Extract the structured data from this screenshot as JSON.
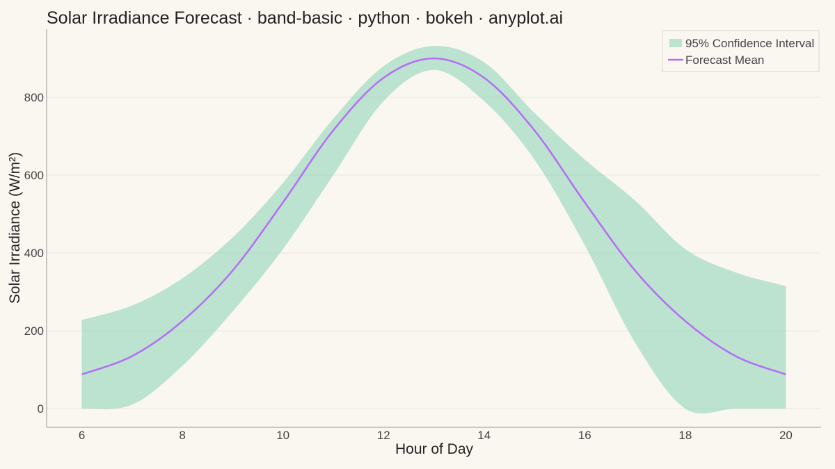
{
  "chart_data": {
    "type": "area",
    "title": "Solar Irradiance Forecast · band-basic · python · bokeh · anyplot.ai",
    "xlabel": "Hour of Day",
    "ylabel": "Solar Irradiance (W/m²)",
    "xlim": [
      5.3,
      20.7
    ],
    "ylim": [
      -48,
      975
    ],
    "x_ticks": [
      6,
      8,
      10,
      12,
      14,
      16,
      18,
      20
    ],
    "y_ticks": [
      0,
      200,
      400,
      600,
      800
    ],
    "grid": "horizontal",
    "legend_position": "top-right",
    "x": [
      6,
      7,
      8,
      9,
      10,
      11,
      12,
      13,
      14,
      15,
      16,
      17,
      18,
      19,
      20
    ],
    "series": [
      {
        "name": "95% Confidence Interval",
        "kind": "band",
        "color": "#7ecfad",
        "lower": [
          0,
          10,
          110,
          250,
          410,
          600,
          790,
          870,
          790,
          640,
          420,
          170,
          0,
          0,
          0
        ],
        "upper": [
          228,
          265,
          335,
          440,
          580,
          745,
          880,
          932,
          890,
          760,
          640,
          535,
          410,
          350,
          315
        ]
      },
      {
        "name": "Forecast Mean",
        "kind": "line",
        "color": "#b56cf6",
        "values": [
          88,
          135,
          225,
          355,
          530,
          715,
          850,
          900,
          850,
          715,
          530,
          355,
          225,
          135,
          88
        ]
      }
    ]
  }
}
